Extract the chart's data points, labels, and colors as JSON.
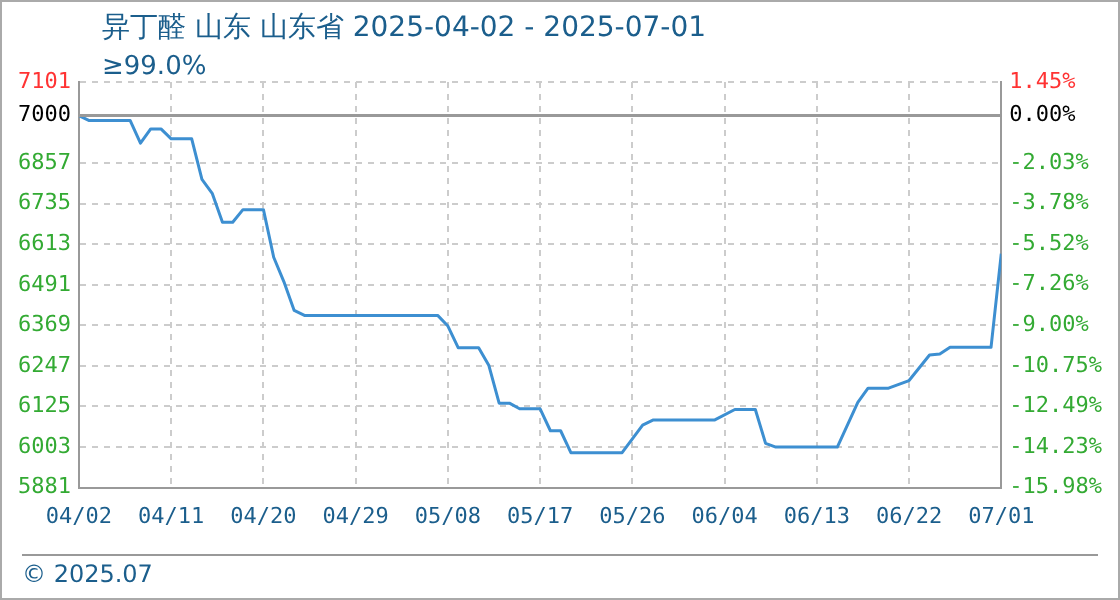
{
  "chart_data": {
    "type": "line",
    "title": "异丁醛 山东 山东省 2025-04-02 - 2025-07-01",
    "subtitle": "≥99.0%",
    "x": [
      "2025-04-02",
      "2025-04-03",
      "2025-04-07",
      "2025-04-08",
      "2025-04-09",
      "2025-04-10",
      "2025-04-11",
      "2025-04-13",
      "2025-04-14",
      "2025-04-15",
      "2025-04-16",
      "2025-04-17",
      "2025-04-18",
      "2025-04-20",
      "2025-04-21",
      "2025-04-22",
      "2025-04-23",
      "2025-04-24",
      "2025-05-07",
      "2025-05-08",
      "2025-05-09",
      "2025-05-11",
      "2025-05-12",
      "2025-05-13",
      "2025-05-14",
      "2025-05-15",
      "2025-05-17",
      "2025-05-18",
      "2025-05-19",
      "2025-05-20",
      "2025-05-25",
      "2025-05-27",
      "2025-05-28",
      "2025-06-03",
      "2025-06-05",
      "2025-06-07",
      "2025-06-08",
      "2025-06-09",
      "2025-06-15",
      "2025-06-17",
      "2025-06-18",
      "2025-06-20",
      "2025-06-22",
      "2025-06-24",
      "2025-06-25",
      "2025-06-26",
      "2025-06-30",
      "2025-07-01"
    ],
    "series": [
      {
        "color": "#3d8fd1",
        "values": [
          7000,
          6985,
          6985,
          6917,
          6960,
          6960,
          6930,
          6930,
          6808,
          6766,
          6679,
          6679,
          6717,
          6717,
          6574,
          6500,
          6414,
          6399,
          6399,
          6367,
          6302,
          6302,
          6248,
          6135,
          6135,
          6118,
          6118,
          6052,
          6052,
          5986,
          5986,
          6069,
          6084,
          6084,
          6116,
          6116,
          6014,
          6003,
          6003,
          6137,
          6180,
          6180,
          6203,
          6280,
          6283,
          6303,
          6303,
          6585
        ]
      }
    ],
    "xlim": [
      "2025-04-02",
      "2025-07-01"
    ],
    "xticks": [
      {
        "value": "2025-04-02",
        "label": "04/02"
      },
      {
        "value": "2025-04-11",
        "label": "04/11"
      },
      {
        "value": "2025-04-20",
        "label": "04/20"
      },
      {
        "value": "2025-04-29",
        "label": "04/29"
      },
      {
        "value": "2025-05-08",
        "label": "05/08"
      },
      {
        "value": "2025-05-17",
        "label": "05/17"
      },
      {
        "value": "2025-05-26",
        "label": "05/26"
      },
      {
        "value": "2025-06-04",
        "label": "06/04"
      },
      {
        "value": "2025-06-13",
        "label": "06/13"
      },
      {
        "value": "2025-06-22",
        "label": "06/22"
      },
      {
        "value": "2025-07-01",
        "label": "07/01"
      }
    ],
    "ylim": [
      5881,
      7101
    ],
    "yticks": [
      5881,
      6003,
      6125,
      6247,
      6369,
      6491,
      6613,
      6735,
      6857,
      7000,
      7101
    ],
    "y2lim": [
      -15.98,
      1.45
    ],
    "y2ticks": [
      {
        "value": -15.98,
        "label": "-15.98%"
      },
      {
        "value": -14.23,
        "label": "-14.23%"
      },
      {
        "value": -12.49,
        "label": "-12.49%"
      },
      {
        "value": -10.75,
        "label": "-10.75%"
      },
      {
        "value": -9.0,
        "label": "-9.00%"
      },
      {
        "value": -7.26,
        "label": "-7.26%"
      },
      {
        "value": -5.52,
        "label": "-5.52%"
      },
      {
        "value": -3.78,
        "label": "-3.78%"
      },
      {
        "value": -2.03,
        "label": "-2.03%"
      },
      {
        "value": 0,
        "label": "0.00%"
      },
      {
        "value": 1.45,
        "label": "1.45%"
      }
    ],
    "ref_lines": [
      {
        "axis": "y",
        "value": 7000,
        "color": "#999999"
      }
    ],
    "annotations": [
      "© 2025.07"
    ],
    "grid": true,
    "legend": false,
    "marker": "none",
    "line_style": "solid"
  }
}
